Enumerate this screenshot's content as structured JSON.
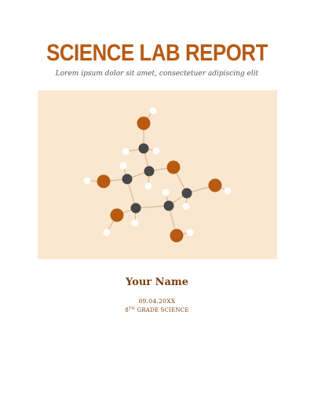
{
  "report": {
    "title": "SCIENCE LAB REPORT",
    "subtitle": "Lorem ipsum dolor sit amet, consectetuer adipiscing elit",
    "author_name": "Your Name",
    "date": "09.04.20XX",
    "grade_number": "8",
    "grade_suffix": "TH",
    "grade_label": "GRADE SCIENCE"
  },
  "illustration": {
    "icon": "molecule-illustration",
    "background_color": "#FAE7CF",
    "atom_colors": {
      "carbon": "#474747",
      "oxygen": "#B85A12",
      "hydrogen": "#FFFFFF",
      "bond": "#D9B89A"
    }
  },
  "colors": {
    "accent": "#B85A12",
    "text_brown": "#7A3E10"
  }
}
